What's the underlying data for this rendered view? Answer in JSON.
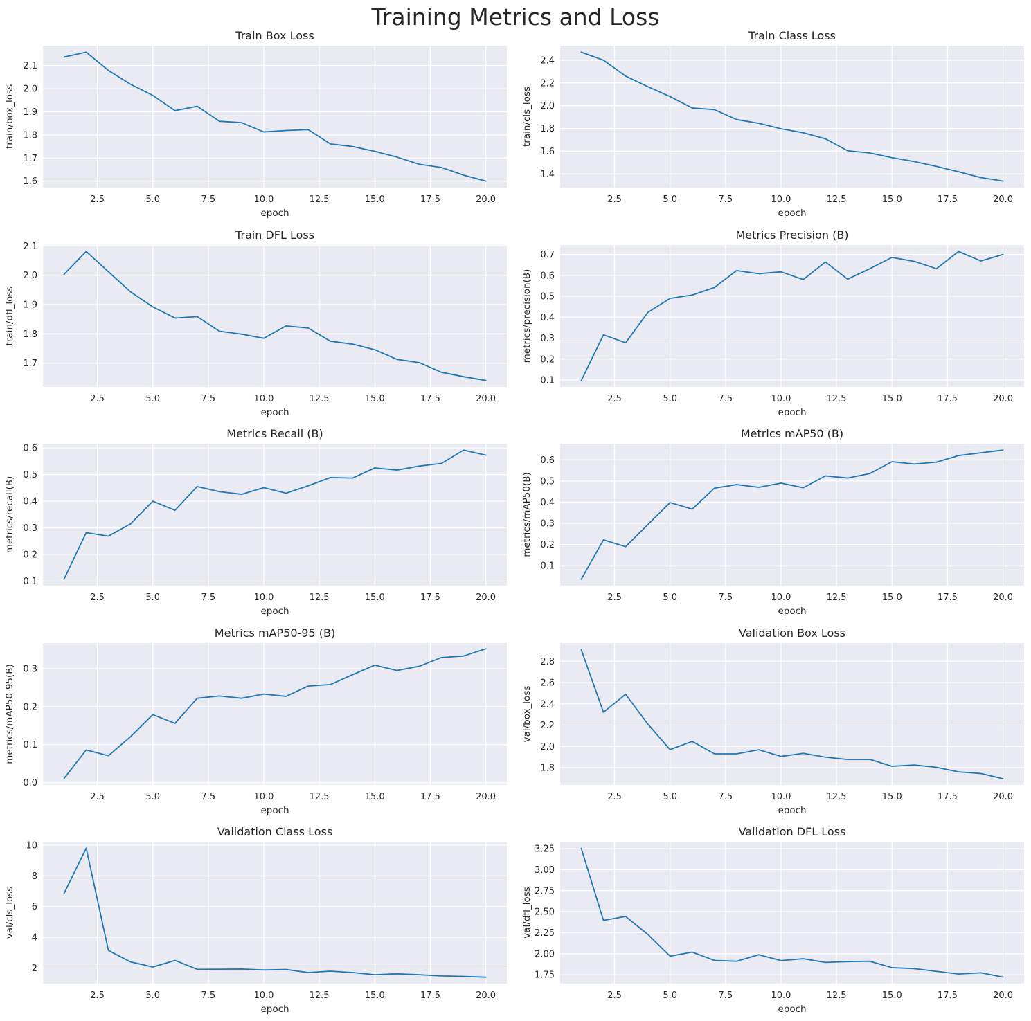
{
  "figure": {
    "title": "Training Metrics and Loss"
  },
  "chart_data": [
    {
      "type": "line",
      "title": "Train Box Loss",
      "xlabel": "epoch",
      "ylabel": "train/box_loss",
      "x": [
        1,
        2,
        3,
        4,
        5,
        6,
        7,
        8,
        9,
        10,
        11,
        12,
        13,
        14,
        15,
        16,
        17,
        18,
        19,
        20
      ],
      "values": [
        2.137,
        2.158,
        2.079,
        2.019,
        1.971,
        1.905,
        1.924,
        1.859,
        1.853,
        1.813,
        1.819,
        1.823,
        1.761,
        1.75,
        1.729,
        1.704,
        1.673,
        1.659,
        1.626,
        1.6
      ],
      "xlim": [
        0.05,
        20.95
      ],
      "ylim": [
        1.572,
        2.186
      ],
      "xticks": [
        2.5,
        5.0,
        7.5,
        10.0,
        12.5,
        15.0,
        17.5,
        20.0
      ],
      "xtick_labels": [
        "2.5",
        "5.0",
        "7.5",
        "10.0",
        "12.5",
        "15.0",
        "17.5",
        "20.0"
      ],
      "yticks": [
        1.6,
        1.7,
        1.8,
        1.9,
        2.0,
        2.1
      ],
      "ytick_labels": [
        "1.6",
        "1.7",
        "1.8",
        "1.9",
        "2.0",
        "2.1"
      ],
      "grid": true
    },
    {
      "type": "line",
      "title": "Train Class Loss",
      "xlabel": "epoch",
      "ylabel": "train/cls_loss",
      "x": [
        1,
        2,
        3,
        4,
        5,
        6,
        7,
        8,
        9,
        10,
        11,
        12,
        13,
        14,
        15,
        16,
        17,
        18,
        19,
        20
      ],
      "values": [
        2.47,
        2.4,
        2.26,
        2.167,
        2.08,
        1.98,
        1.965,
        1.878,
        1.845,
        1.797,
        1.762,
        1.709,
        1.604,
        1.584,
        1.543,
        1.509,
        1.466,
        1.419,
        1.368,
        1.337
      ],
      "xlim": [
        0.05,
        20.95
      ],
      "ylim": [
        1.28,
        2.527
      ],
      "xticks": [
        2.5,
        5.0,
        7.5,
        10.0,
        12.5,
        15.0,
        17.5,
        20.0
      ],
      "xtick_labels": [
        "2.5",
        "5.0",
        "7.5",
        "10.0",
        "12.5",
        "15.0",
        "17.5",
        "20.0"
      ],
      "yticks": [
        1.4,
        1.6,
        1.8,
        2.0,
        2.2,
        2.4
      ],
      "ytick_labels": [
        "1.4",
        "1.6",
        "1.8",
        "2.0",
        "2.2",
        "2.4"
      ],
      "grid": true
    },
    {
      "type": "line",
      "title": "Train DFL Loss",
      "xlabel": "epoch",
      "ylabel": "train/dfl_loss",
      "x": [
        1,
        2,
        3,
        4,
        5,
        6,
        7,
        8,
        9,
        10,
        11,
        12,
        13,
        14,
        15,
        16,
        17,
        18,
        19,
        20
      ],
      "values": [
        2.003,
        2.081,
        2.012,
        1.943,
        1.892,
        1.854,
        1.859,
        1.809,
        1.799,
        1.785,
        1.827,
        1.82,
        1.775,
        1.765,
        1.746,
        1.713,
        1.702,
        1.669,
        1.654,
        1.641
      ],
      "xlim": [
        0.05,
        20.95
      ],
      "ylim": [
        1.619,
        2.103
      ],
      "xticks": [
        2.5,
        5.0,
        7.5,
        10.0,
        12.5,
        15.0,
        17.5,
        20.0
      ],
      "xtick_labels": [
        "2.5",
        "5.0",
        "7.5",
        "10.0",
        "12.5",
        "15.0",
        "17.5",
        "20.0"
      ],
      "yticks": [
        1.7,
        1.8,
        1.9,
        2.0,
        2.1
      ],
      "ytick_labels": [
        "1.7",
        "1.8",
        "1.9",
        "2.0",
        "2.1"
      ],
      "grid": true
    },
    {
      "type": "line",
      "title": "Metrics Precision (B)",
      "xlabel": "epoch",
      "ylabel": "metrics/precision(B)",
      "x": [
        1,
        2,
        3,
        4,
        5,
        6,
        7,
        8,
        9,
        10,
        11,
        12,
        13,
        14,
        15,
        16,
        17,
        18,
        19,
        20
      ],
      "values": [
        0.097,
        0.316,
        0.278,
        0.423,
        0.49,
        0.506,
        0.542,
        0.623,
        0.608,
        0.617,
        0.58,
        0.664,
        0.582,
        0.632,
        0.686,
        0.667,
        0.632,
        0.714,
        0.669,
        0.7
      ],
      "xlim": [
        0.05,
        20.95
      ],
      "ylim": [
        0.067,
        0.745
      ],
      "xticks": [
        2.5,
        5.0,
        7.5,
        10.0,
        12.5,
        15.0,
        17.5,
        20.0
      ],
      "xtick_labels": [
        "2.5",
        "5.0",
        "7.5",
        "10.0",
        "12.5",
        "15.0",
        "17.5",
        "20.0"
      ],
      "yticks": [
        0.1,
        0.2,
        0.3,
        0.4,
        0.5,
        0.6,
        0.7
      ],
      "ytick_labels": [
        "0.1",
        "0.2",
        "0.3",
        "0.4",
        "0.5",
        "0.6",
        "0.7"
      ],
      "grid": true
    },
    {
      "type": "line",
      "title": "Metrics Recall (B)",
      "xlabel": "epoch",
      "ylabel": "metrics/recall(B)",
      "x": [
        1,
        2,
        3,
        4,
        5,
        6,
        7,
        8,
        9,
        10,
        11,
        12,
        13,
        14,
        15,
        16,
        17,
        18,
        19,
        20
      ],
      "values": [
        0.107,
        0.282,
        0.269,
        0.315,
        0.4,
        0.366,
        0.455,
        0.436,
        0.426,
        0.451,
        0.43,
        0.458,
        0.489,
        0.487,
        0.525,
        0.517,
        0.532,
        0.542,
        0.592,
        0.573
      ],
      "xlim": [
        0.05,
        20.95
      ],
      "ylim": [
        0.083,
        0.616
      ],
      "xticks": [
        2.5,
        5.0,
        7.5,
        10.0,
        12.5,
        15.0,
        17.5,
        20.0
      ],
      "xtick_labels": [
        "2.5",
        "5.0",
        "7.5",
        "10.0",
        "12.5",
        "15.0",
        "17.5",
        "20.0"
      ],
      "yticks": [
        0.1,
        0.2,
        0.3,
        0.4,
        0.5,
        0.6
      ],
      "ytick_labels": [
        "0.1",
        "0.2",
        "0.3",
        "0.4",
        "0.5",
        "0.6"
      ],
      "grid": true
    },
    {
      "type": "line",
      "title": "Metrics mAP50 (B)",
      "xlabel": "epoch",
      "ylabel": "metrics/mAP50(B)",
      "x": [
        1,
        2,
        3,
        4,
        5,
        6,
        7,
        8,
        9,
        10,
        11,
        12,
        13,
        14,
        15,
        16,
        17,
        18,
        19,
        20
      ],
      "values": [
        0.036,
        0.222,
        0.19,
        0.294,
        0.398,
        0.367,
        0.466,
        0.483,
        0.47,
        0.49,
        0.468,
        0.524,
        0.514,
        0.535,
        0.591,
        0.58,
        0.589,
        0.62,
        0.633,
        0.646
      ],
      "xlim": [
        0.05,
        20.95
      ],
      "ylim": [
        0.006,
        0.676
      ],
      "xticks": [
        2.5,
        5.0,
        7.5,
        10.0,
        12.5,
        15.0,
        17.5,
        20.0
      ],
      "xtick_labels": [
        "2.5",
        "5.0",
        "7.5",
        "10.0",
        "12.5",
        "15.0",
        "17.5",
        "20.0"
      ],
      "yticks": [
        0.1,
        0.2,
        0.3,
        0.4,
        0.5,
        0.6
      ],
      "ytick_labels": [
        "0.1",
        "0.2",
        "0.3",
        "0.4",
        "0.5",
        "0.6"
      ],
      "grid": true
    },
    {
      "type": "line",
      "title": "Metrics mAP50-95 (B)",
      "xlabel": "epoch",
      "ylabel": "metrics/mAP50-95(B)",
      "x": [
        1,
        2,
        3,
        4,
        5,
        6,
        7,
        8,
        9,
        10,
        11,
        12,
        13,
        14,
        15,
        16,
        17,
        18,
        19,
        20
      ],
      "values": [
        0.011,
        0.086,
        0.071,
        0.121,
        0.179,
        0.156,
        0.222,
        0.228,
        0.222,
        0.233,
        0.227,
        0.254,
        0.258,
        0.284,
        0.309,
        0.295,
        0.306,
        0.329,
        0.333,
        0.352
      ],
      "xlim": [
        0.05,
        20.95
      ],
      "ylim": [
        -0.006,
        0.367
      ],
      "xticks": [
        2.5,
        5.0,
        7.5,
        10.0,
        12.5,
        15.0,
        17.5,
        20.0
      ],
      "xtick_labels": [
        "2.5",
        "5.0",
        "7.5",
        "10.0",
        "12.5",
        "15.0",
        "17.5",
        "20.0"
      ],
      "yticks": [
        0.0,
        0.1,
        0.2,
        0.3
      ],
      "ytick_labels": [
        "0.0",
        "0.1",
        "0.2",
        "0.3"
      ],
      "grid": true
    },
    {
      "type": "line",
      "title": "Validation Box Loss",
      "xlabel": "epoch",
      "ylabel": "val/box_loss",
      "x": [
        1,
        2,
        3,
        4,
        5,
        6,
        7,
        8,
        9,
        10,
        11,
        12,
        13,
        14,
        15,
        16,
        17,
        18,
        19,
        20
      ],
      "values": [
        2.91,
        2.322,
        2.49,
        2.21,
        1.97,
        2.047,
        1.93,
        1.93,
        1.968,
        1.906,
        1.935,
        1.899,
        1.877,
        1.878,
        1.813,
        1.825,
        1.803,
        1.76,
        1.745,
        1.696
      ],
      "xlim": [
        0.05,
        20.95
      ],
      "ylim": [
        1.637,
        2.972
      ],
      "xticks": [
        2.5,
        5.0,
        7.5,
        10.0,
        12.5,
        15.0,
        17.5,
        20.0
      ],
      "xtick_labels": [
        "2.5",
        "5.0",
        "7.5",
        "10.0",
        "12.5",
        "15.0",
        "17.5",
        "20.0"
      ],
      "yticks": [
        1.8,
        2.0,
        2.2,
        2.4,
        2.6,
        2.8
      ],
      "ytick_labels": [
        "1.8",
        "2.0",
        "2.2",
        "2.4",
        "2.6",
        "2.8"
      ],
      "grid": true
    },
    {
      "type": "line",
      "title": "Validation Class Loss",
      "xlabel": "epoch",
      "ylabel": "val/cls_loss",
      "x": [
        1,
        2,
        3,
        4,
        5,
        6,
        7,
        8,
        9,
        10,
        11,
        12,
        13,
        14,
        15,
        16,
        17,
        18,
        19,
        20
      ],
      "values": [
        6.85,
        9.8,
        3.15,
        2.4,
        2.07,
        2.5,
        1.92,
        1.93,
        1.94,
        1.88,
        1.91,
        1.71,
        1.8,
        1.71,
        1.57,
        1.63,
        1.57,
        1.49,
        1.46,
        1.41
      ],
      "xlim": [
        0.05,
        20.95
      ],
      "ylim": [
        0.99,
        10.22
      ],
      "xticks": [
        2.5,
        5.0,
        7.5,
        10.0,
        12.5,
        15.0,
        17.5,
        20.0
      ],
      "xtick_labels": [
        "2.5",
        "5.0",
        "7.5",
        "10.0",
        "12.5",
        "15.0",
        "17.5",
        "20.0"
      ],
      "yticks": [
        2,
        4,
        6,
        8,
        10
      ],
      "ytick_labels": [
        "2",
        "4",
        "6",
        "8",
        "10"
      ],
      "grid": true
    },
    {
      "type": "line",
      "title": "Validation DFL Loss",
      "xlabel": "epoch",
      "ylabel": "val/dfl_loss",
      "x": [
        1,
        2,
        3,
        4,
        5,
        6,
        7,
        8,
        9,
        10,
        11,
        12,
        13,
        14,
        15,
        16,
        17,
        18,
        19,
        20
      ],
      "values": [
        3.255,
        2.397,
        2.443,
        2.23,
        1.971,
        2.019,
        1.92,
        1.91,
        1.988,
        1.918,
        1.94,
        1.896,
        1.906,
        1.91,
        1.834,
        1.822,
        1.79,
        1.758,
        1.773,
        1.722
      ],
      "xlim": [
        0.05,
        20.95
      ],
      "ylim": [
        1.644,
        3.333
      ],
      "xticks": [
        2.5,
        5.0,
        7.5,
        10.0,
        12.5,
        15.0,
        17.5,
        20.0
      ],
      "xtick_labels": [
        "2.5",
        "5.0",
        "7.5",
        "10.0",
        "12.5",
        "15.0",
        "17.5",
        "20.0"
      ],
      "yticks": [
        1.75,
        2.0,
        2.25,
        2.5,
        2.75,
        3.0,
        3.25
      ],
      "ytick_labels": [
        "1.75",
        "2.00",
        "2.25",
        "2.50",
        "2.75",
        "3.00",
        "3.25"
      ],
      "grid": true
    }
  ]
}
